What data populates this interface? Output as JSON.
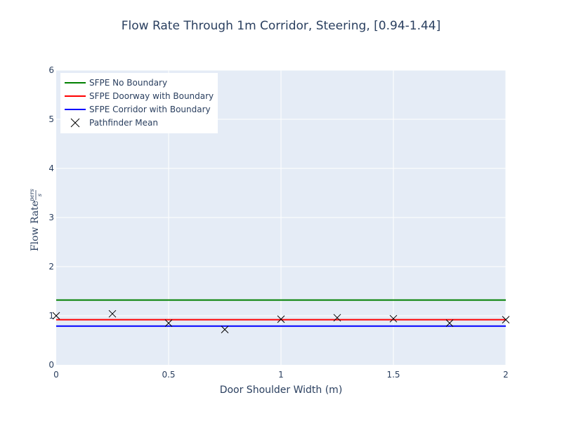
{
  "chart_data": {
    "type": "line",
    "title": "Flow Rate Through 1m Corridor, Steering, [0.94-1.44]",
    "xlabel": "Door Shoulder Width (m)",
    "ylabel": "Flow Rate",
    "ylabel_unit_num": "pers",
    "ylabel_unit_den": "s",
    "xlim": [
      0,
      2
    ],
    "ylim": [
      0,
      6
    ],
    "x_ticks": [
      "0",
      "0.5",
      "1",
      "1.5",
      "2"
    ],
    "y_ticks": [
      "0",
      "1",
      "2",
      "3",
      "4",
      "5",
      "6"
    ],
    "grid": true,
    "legend_position": "top-left",
    "series": [
      {
        "name": "SFPE No Boundary",
        "kind": "line",
        "color": "#008000",
        "x": [
          0,
          2
        ],
        "y": [
          1.32,
          1.32
        ]
      },
      {
        "name": "SFPE Doorway with Boundary",
        "kind": "line",
        "color": "#ff0000",
        "x": [
          0,
          2
        ],
        "y": [
          0.92,
          0.92
        ]
      },
      {
        "name": "SFPE Corridor with Boundary",
        "kind": "line",
        "color": "#0000ff",
        "x": [
          0,
          2
        ],
        "y": [
          0.79,
          0.79
        ]
      },
      {
        "name": "Pathfinder Mean",
        "kind": "marker",
        "color": "#000000",
        "marker": "x",
        "x": [
          0,
          0.25,
          0.5,
          0.75,
          1.0,
          1.25,
          1.5,
          1.75,
          2.0
        ],
        "y": [
          1.0,
          1.04,
          0.85,
          0.72,
          0.93,
          0.96,
          0.94,
          0.85,
          0.92
        ]
      }
    ]
  }
}
